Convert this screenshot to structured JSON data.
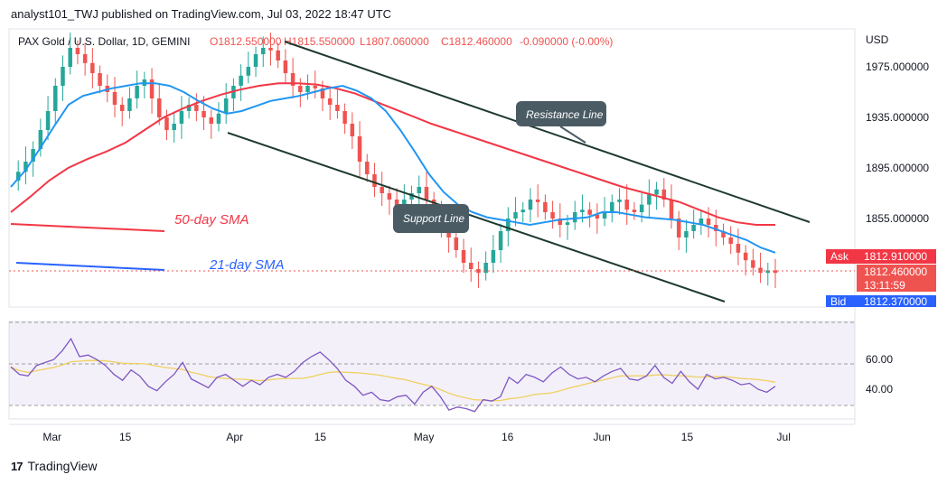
{
  "header": {
    "publisher": "analyst101_TWJ published on TradingView.com, Jul 03, 2022 18:47 UTC"
  },
  "footer": {
    "brand": "TradingView",
    "logo": "17"
  },
  "chart_data": {
    "type": "candlestick",
    "symbol_line": {
      "name": "PAX Gold / U.S. Dollar, 1D, GEMINI",
      "open": "O1812.550000",
      "high": "H1815.550000",
      "low": "L1807.060000",
      "close": "C1812.460000",
      "change": "-0.090000 (-0.00%)"
    },
    "currency": "USD",
    "price_ticks": [
      "1975.000000",
      "1935.000000",
      "1895.000000",
      "1855.000000"
    ],
    "rsi_ticks": [
      "60.00",
      "40.00"
    ],
    "x_labels": [
      "Mar",
      "15",
      "Apr",
      "15",
      "May",
      "16",
      "Jun",
      "15",
      "Jul"
    ],
    "ylim": [
      1785,
      2005
    ],
    "rsi_ylim": [
      20,
      85
    ],
    "price_tags": {
      "ask_label": "Ask",
      "ask": "1812.910000",
      "last": "1812.460000",
      "countdown": "13:11:59",
      "bid_label": "Bid",
      "bid": "1812.370000"
    },
    "annotations": {
      "resistance": "Resistance Line",
      "support": "Support Line",
      "sma50": "50-day SMA",
      "sma21": "21-day SMA"
    },
    "colors": {
      "up": "#26a69a",
      "down": "#ef5350",
      "sma21": "#2196f3",
      "sma50": "#f23645",
      "rsi": "#7e57c2",
      "rsi_ma": "#f0d060",
      "channel": "#1e3a2f",
      "ask": "#f23645",
      "bid": "#2962ff"
    },
    "close_path": [
      1885,
      1892,
      1900,
      1910,
      1925,
      1940,
      1960,
      1975,
      1990,
      1985,
      1978,
      1970,
      1960,
      1955,
      1945,
      1940,
      1950,
      1960,
      1965,
      1950,
      1935,
      1925,
      1930,
      1940,
      1945,
      1940,
      1935,
      1930,
      1938,
      1950,
      1960,
      1968,
      1975,
      1985,
      1990,
      1988,
      1980,
      1970,
      1960,
      1955,
      1960,
      1958,
      1950,
      1945,
      1940,
      1930,
      1920,
      1900,
      1890,
      1880,
      1875,
      1870,
      1865,
      1870,
      1875,
      1880,
      1870,
      1860,
      1850,
      1840,
      1830,
      1820,
      1815,
      1812,
      1820,
      1830,
      1845,
      1855,
      1860,
      1862,
      1870,
      1868,
      1860,
      1855,
      1850,
      1852,
      1860,
      1862,
      1858,
      1855,
      1860,
      1868,
      1870,
      1862,
      1860,
      1866,
      1874,
      1878,
      1870,
      1855,
      1840,
      1845,
      1850,
      1855,
      1850,
      1845,
      1840,
      1835,
      1828,
      1822,
      1816,
      1812,
      1814,
      1812
    ],
    "sma21_path": [
      1880,
      1893,
      1910,
      1928,
      1945,
      1952,
      1955,
      1958,
      1960,
      1962,
      1962,
      1960,
      1955,
      1948,
      1942,
      1938,
      1940,
      1944,
      1948,
      1950,
      1952,
      1955,
      1958,
      1960,
      1956,
      1950,
      1940,
      1925,
      1908,
      1890,
      1876,
      1866,
      1860,
      1856,
      1854,
      1852,
      1850,
      1852,
      1854,
      1855,
      1856,
      1860,
      1860,
      1858,
      1856,
      1855,
      1854,
      1852,
      1850,
      1846,
      1842,
      1838,
      1832,
      1828
    ],
    "sma50_path": [
      1860,
      1872,
      1885,
      1895,
      1902,
      1908,
      1915,
      1925,
      1935,
      1942,
      1948,
      1953,
      1957,
      1960,
      1962,
      1962,
      1961,
      1958,
      1954,
      1948,
      1942,
      1936,
      1930,
      1925,
      1920,
      1915,
      1910,
      1905,
      1900,
      1895,
      1890,
      1885,
      1880,
      1876,
      1872,
      1868,
      1862,
      1856,
      1852,
      1850,
      1850
    ],
    "rsi_values": [
      55,
      50,
      49,
      56,
      58,
      60,
      66,
      74,
      62,
      63,
      60,
      56,
      50,
      46,
      53,
      49,
      42,
      39,
      45,
      50,
      58,
      47,
      44,
      41,
      48,
      50,
      46,
      42,
      46,
      43,
      48,
      50,
      48,
      52,
      58,
      62,
      65,
      60,
      54,
      46,
      42,
      36,
      38,
      33,
      32,
      35,
      36,
      30,
      38,
      42,
      35,
      26,
      28,
      27,
      25,
      33,
      32,
      35,
      48,
      44,
      50,
      48,
      45,
      51,
      55,
      50,
      47,
      48,
      45,
      49,
      52,
      54,
      47,
      46,
      49,
      56,
      48,
      44,
      52,
      45,
      40,
      50,
      47,
      48,
      46,
      43,
      44,
      40,
      38,
      42
    ]
  }
}
